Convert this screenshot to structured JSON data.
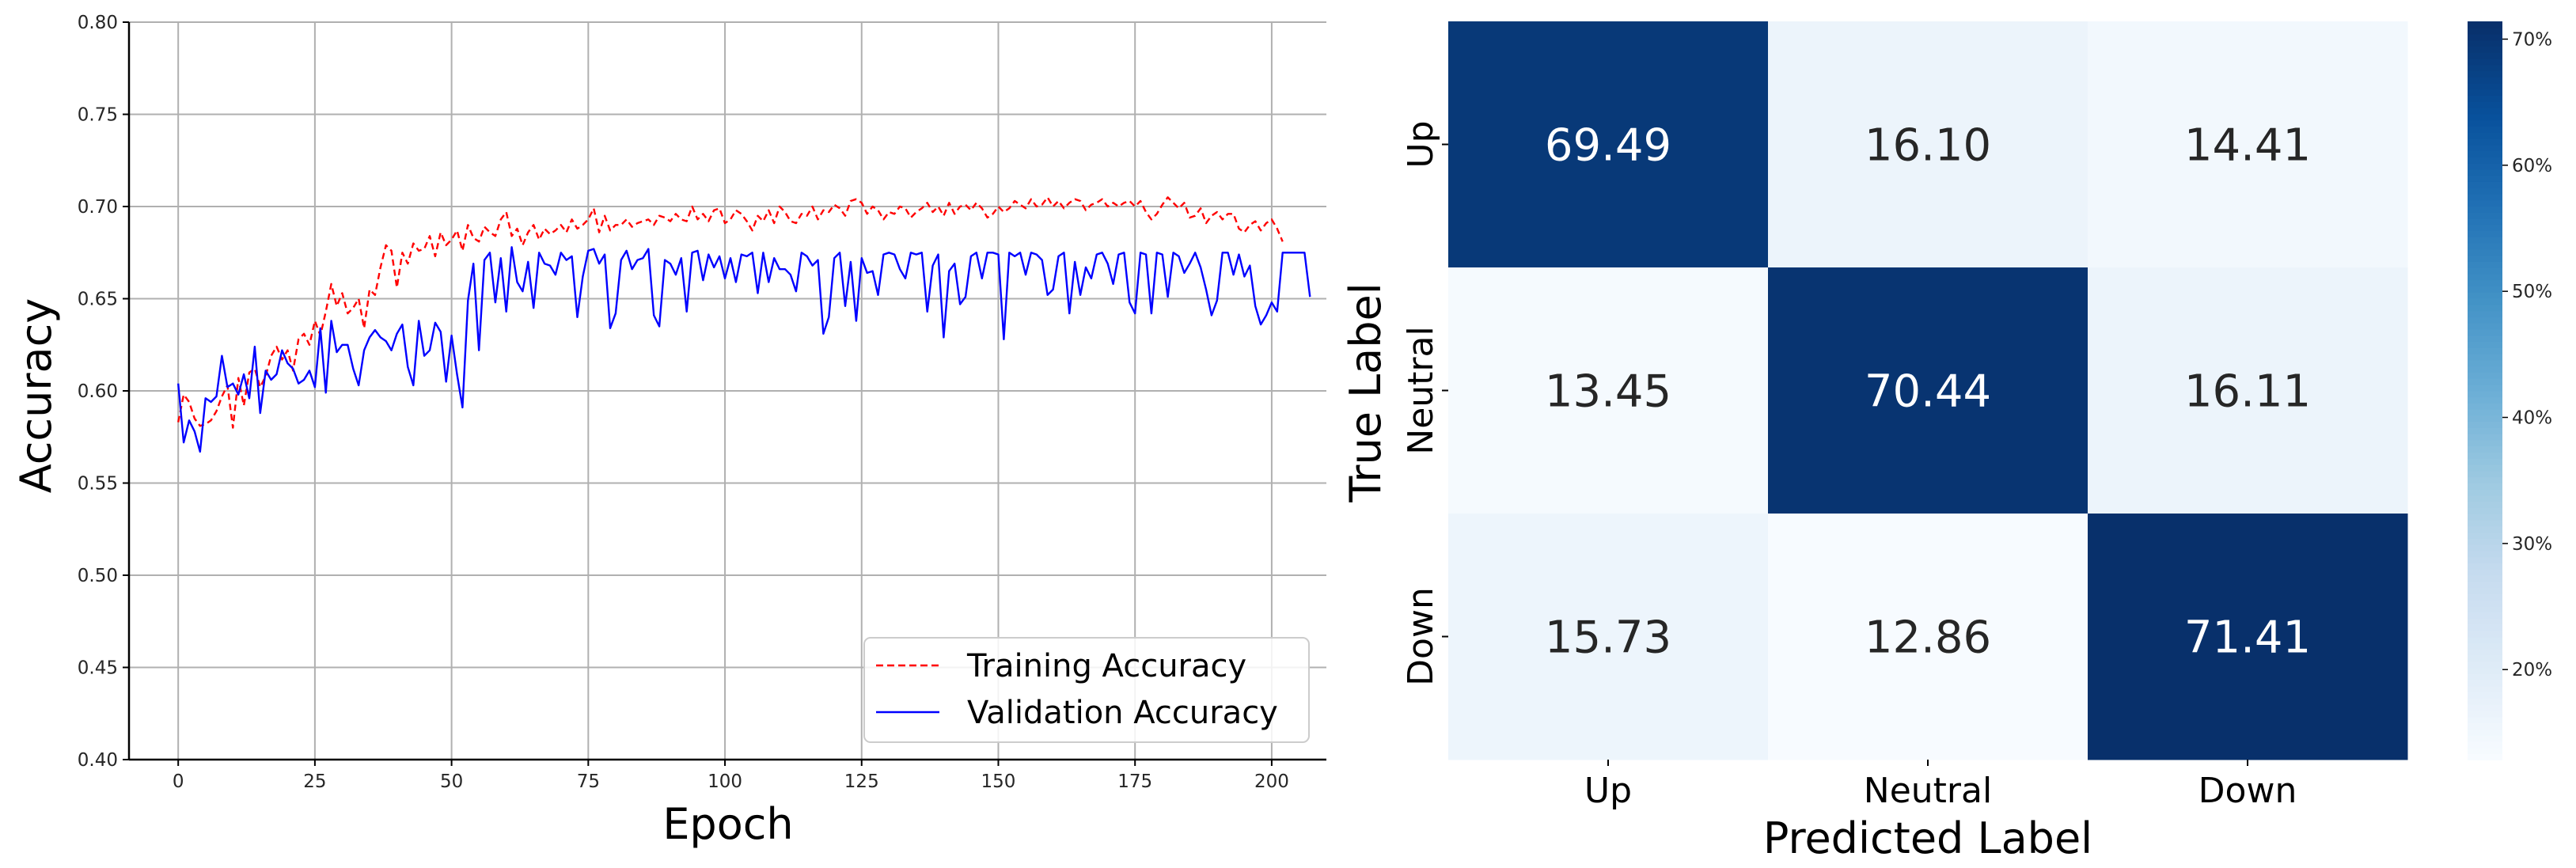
{
  "chart_data": [
    {
      "type": "line",
      "xlabel": "Epoch",
      "ylabel": "Accuracy",
      "xlim": [
        -9,
        210
      ],
      "ylim": [
        0.4,
        0.8
      ],
      "xticks": [
        "0",
        "25",
        "50",
        "75",
        "100",
        "125",
        "150",
        "175",
        "200"
      ],
      "yticks": [
        "0.40",
        "0.45",
        "0.50",
        "0.55",
        "0.60",
        "0.65",
        "0.70",
        "0.75",
        "0.80"
      ],
      "grid": true,
      "legend_position": "lower-right",
      "x_step": 1,
      "series": [
        {
          "name": "Training Accuracy",
          "color": "#ff0000",
          "style": "dashed",
          "values": [
            0.583,
            0.598,
            0.594,
            0.585,
            0.581,
            0.582,
            0.584,
            0.589,
            0.597,
            0.603,
            0.58,
            0.607,
            0.592,
            0.61,
            0.612,
            0.602,
            0.608,
            0.619,
            0.624,
            0.617,
            0.622,
            0.611,
            0.628,
            0.631,
            0.625,
            0.638,
            0.63,
            0.643,
            0.658,
            0.646,
            0.653,
            0.642,
            0.645,
            0.65,
            0.634,
            0.655,
            0.652,
            0.667,
            0.679,
            0.676,
            0.656,
            0.675,
            0.669,
            0.68,
            0.676,
            0.677,
            0.684,
            0.673,
            0.686,
            0.679,
            0.682,
            0.687,
            0.676,
            0.69,
            0.683,
            0.681,
            0.689,
            0.686,
            0.684,
            0.693,
            0.697,
            0.684,
            0.688,
            0.679,
            0.686,
            0.69,
            0.682,
            0.688,
            0.685,
            0.687,
            0.69,
            0.686,
            0.693,
            0.688,
            0.69,
            0.693,
            0.699,
            0.686,
            0.695,
            0.687,
            0.69,
            0.69,
            0.693,
            0.689,
            0.691,
            0.692,
            0.693,
            0.69,
            0.695,
            0.694,
            0.692,
            0.696,
            0.693,
            0.692,
            0.7,
            0.693,
            0.696,
            0.692,
            0.698,
            0.699,
            0.691,
            0.693,
            0.698,
            0.696,
            0.692,
            0.687,
            0.695,
            0.692,
            0.698,
            0.691,
            0.7,
            0.697,
            0.692,
            0.691,
            0.696,
            0.695,
            0.7,
            0.693,
            0.698,
            0.697,
            0.701,
            0.699,
            0.695,
            0.703,
            0.704,
            0.702,
            0.696,
            0.7,
            0.698,
            0.693,
            0.697,
            0.696,
            0.7,
            0.699,
            0.694,
            0.697,
            0.699,
            0.702,
            0.697,
            0.7,
            0.695,
            0.702,
            0.696,
            0.7,
            0.701,
            0.698,
            0.702,
            0.699,
            0.694,
            0.696,
            0.7,
            0.697,
            0.699,
            0.703,
            0.701,
            0.699,
            0.704,
            0.7,
            0.701,
            0.705,
            0.7,
            0.703,
            0.699,
            0.702,
            0.704,
            0.703,
            0.698,
            0.701,
            0.702,
            0.704,
            0.7,
            0.702,
            0.7,
            0.702,
            0.703,
            0.7,
            0.703,
            0.697,
            0.693,
            0.696,
            0.701,
            0.705,
            0.702,
            0.699,
            0.702,
            0.694,
            0.695,
            0.699,
            0.691,
            0.695,
            0.697,
            0.693,
            0.696,
            0.696,
            0.688,
            0.686,
            0.69,
            0.692,
            0.687,
            0.691,
            0.693,
            0.688,
            0.681
          ]
        },
        {
          "name": "Validation Accuracy",
          "color": "#0000ff",
          "style": "solid",
          "values": [
            0.604,
            0.572,
            0.584,
            0.578,
            0.567,
            0.596,
            0.594,
            0.597,
            0.619,
            0.602,
            0.604,
            0.598,
            0.609,
            0.596,
            0.624,
            0.588,
            0.611,
            0.606,
            0.609,
            0.622,
            0.615,
            0.612,
            0.604,
            0.606,
            0.611,
            0.602,
            0.634,
            0.599,
            0.638,
            0.621,
            0.625,
            0.625,
            0.612,
            0.603,
            0.622,
            0.629,
            0.633,
            0.629,
            0.627,
            0.622,
            0.631,
            0.636,
            0.613,
            0.603,
            0.638,
            0.619,
            0.622,
            0.637,
            0.632,
            0.605,
            0.63,
            0.609,
            0.591,
            0.649,
            0.669,
            0.622,
            0.671,
            0.675,
            0.648,
            0.672,
            0.643,
            0.678,
            0.659,
            0.654,
            0.67,
            0.645,
            0.675,
            0.669,
            0.668,
            0.663,
            0.675,
            0.671,
            0.673,
            0.64,
            0.662,
            0.676,
            0.677,
            0.669,
            0.674,
            0.634,
            0.642,
            0.671,
            0.676,
            0.666,
            0.671,
            0.672,
            0.677,
            0.641,
            0.635,
            0.671,
            0.669,
            0.663,
            0.672,
            0.643,
            0.675,
            0.676,
            0.66,
            0.674,
            0.667,
            0.673,
            0.661,
            0.672,
            0.659,
            0.674,
            0.673,
            0.675,
            0.653,
            0.675,
            0.659,
            0.672,
            0.666,
            0.666,
            0.663,
            0.654,
            0.675,
            0.673,
            0.668,
            0.671,
            0.631,
            0.64,
            0.672,
            0.675,
            0.646,
            0.67,
            0.638,
            0.672,
            0.664,
            0.665,
            0.652,
            0.674,
            0.675,
            0.674,
            0.666,
            0.661,
            0.675,
            0.674,
            0.675,
            0.643,
            0.668,
            0.674,
            0.629,
            0.665,
            0.669,
            0.647,
            0.651,
            0.673,
            0.675,
            0.661,
            0.675,
            0.675,
            0.674,
            0.628,
            0.675,
            0.673,
            0.675,
            0.663,
            0.675,
            0.674,
            0.671,
            0.652,
            0.655,
            0.673,
            0.675,
            0.642,
            0.67,
            0.652,
            0.667,
            0.661,
            0.674,
            0.675,
            0.669,
            0.658,
            0.674,
            0.675,
            0.648,
            0.642,
            0.675,
            0.674,
            0.642,
            0.675,
            0.674,
            0.651,
            0.675,
            0.673,
            0.664,
            0.669,
            0.675,
            0.667,
            0.655,
            0.641,
            0.649,
            0.675,
            0.675,
            0.663,
            0.674,
            0.662,
            0.668,
            0.646,
            0.636,
            0.641,
            0.648,
            0.643,
            0.675,
            0.675,
            0.675,
            0.675,
            0.675,
            0.651
          ]
        }
      ]
    },
    {
      "type": "heatmap",
      "xlabel": "Predicted Label",
      "ylabel": "True Label",
      "x_categories": [
        "Up",
        "Neutral",
        "Down"
      ],
      "y_categories": [
        "Up",
        "Neutral",
        "Down"
      ],
      "values": [
        [
          69.49,
          16.1,
          14.41
        ],
        [
          13.45,
          70.44,
          16.11
        ],
        [
          15.73,
          12.86,
          71.41
        ]
      ],
      "cell_labels": [
        [
          "69.49",
          "16.10",
          "14.41"
        ],
        [
          "13.45",
          "70.44",
          "16.11"
        ],
        [
          "15.73",
          "12.86",
          "71.41"
        ]
      ],
      "colormap": "Blues",
      "colorbar": {
        "range": [
          12.86,
          71.41
        ],
        "ticks": [
          "20%",
          "30%",
          "40%",
          "50%",
          "60%",
          "70%"
        ],
        "tick_values": [
          20,
          30,
          40,
          50,
          60,
          70
        ]
      }
    }
  ]
}
